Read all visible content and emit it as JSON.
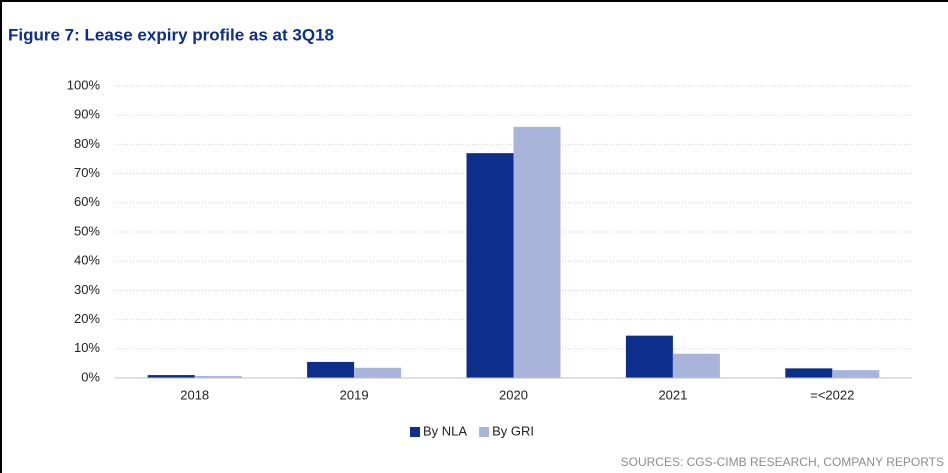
{
  "chart_data": {
    "type": "bar",
    "title": "Figure 7: Lease expiry profile as at 3Q18",
    "source": "SOURCES: CGS-CIMB RESEARCH, COMPANY REPORTS",
    "categories": [
      "2018",
      "2019",
      "2020",
      "2021",
      "=<2022"
    ],
    "series": [
      {
        "name": "By NLA",
        "color": "#0b2f8a",
        "values": [
          1,
          5.5,
          77,
          14.5,
          3.3
        ]
      },
      {
        "name": "By GRI",
        "color": "#a8b4da",
        "values": [
          0.7,
          3.5,
          86,
          8.3,
          2.7
        ]
      }
    ],
    "ylim": [
      0,
      100
    ],
    "yticks": [
      {
        "value": 0,
        "label": "0%"
      },
      {
        "value": 10,
        "label": "10%"
      },
      {
        "value": 20,
        "label": "20%"
      },
      {
        "value": 30,
        "label": "30%"
      },
      {
        "value": 40,
        "label": "40%"
      },
      {
        "value": 50,
        "label": "50%"
      },
      {
        "value": 60,
        "label": "60%"
      },
      {
        "value": 70,
        "label": "70%"
      },
      {
        "value": 80,
        "label": "80%"
      },
      {
        "value": 90,
        "label": "90%"
      },
      {
        "value": 100,
        "label": "100%"
      }
    ],
    "grid": true,
    "legend": "bottom"
  }
}
